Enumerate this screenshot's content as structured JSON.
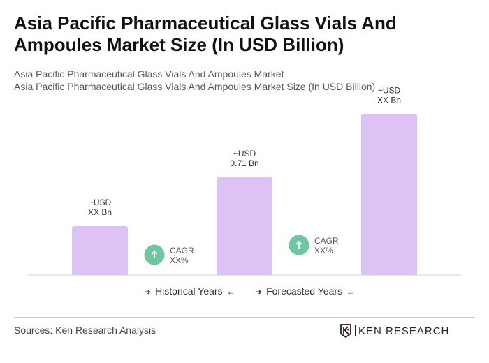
{
  "title": "Asia Pacific Pharmaceutical Glass Vials And Ampoules Market Size (In USD Billion)",
  "subtitle1": "Asia Pacific Pharmaceutical Glass Vials And Ampoules Market",
  "subtitle2": "Asia Pacific Pharmaceutical Glass Vials And Ampoules Market Size (In USD Billion)",
  "chart_data": {
    "type": "bar",
    "values": [
      0.355,
      0.71,
      1.17
    ],
    "data_labels": [
      [
        "~USD",
        "XX Bn"
      ],
      [
        "~USD",
        "0.71 Bn"
      ],
      [
        "~USD",
        "XX Bn"
      ]
    ],
    "cagr": [
      {
        "label": "CAGR",
        "value": "XX%"
      },
      {
        "label": "CAGR",
        "value": "XX%"
      }
    ],
    "bar_color": "#dcc2f5",
    "cagr_color": "#6fc6a0",
    "grid": false
  },
  "legend": {
    "historical": "Historical Years",
    "forecasted": "Forecasted Years"
  },
  "source": "Sources: Ken Research Analysis",
  "logo": "KEN RESEARCH"
}
